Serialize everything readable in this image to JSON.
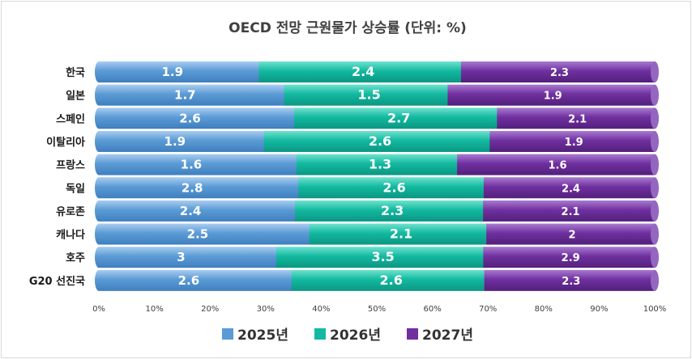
{
  "chart_data": {
    "type": "bar",
    "orientation": "horizontal",
    "stacked": "percent",
    "title": "OECD 전망 근원물가 상승률 (단위: %)",
    "categories": [
      "한국",
      "일본",
      "스페인",
      "이탈리아",
      "프랑스",
      "독일",
      "유로존",
      "캐나다",
      "호주",
      "G20 선진국"
    ],
    "series": [
      {
        "name": "2025년",
        "color": "#5B9BD5",
        "values": [
          1.9,
          1.7,
          2.6,
          1.9,
          1.6,
          2.8,
          2.4,
          2.5,
          3,
          2.6
        ]
      },
      {
        "name": "2026년",
        "color": "#13B9A0",
        "values": [
          2.4,
          1.5,
          2.7,
          2.6,
          1.3,
          2.6,
          2.3,
          2.1,
          3.5,
          2.6
        ]
      },
      {
        "name": "2027년",
        "color": "#7030A0",
        "values": [
          2.3,
          1.9,
          2.1,
          1.9,
          1.6,
          2.4,
          2.1,
          2,
          2.9,
          2.3
        ]
      }
    ],
    "value_labels": [
      [
        "1.9",
        "1.7",
        "2.6",
        "1.9",
        "1.6",
        "2.8",
        "2.4",
        "2.5",
        "3",
        "2.6"
      ],
      [
        "2.4",
        "1.5",
        "2.7",
        "2.6",
        "1.3",
        "2.6",
        "2.3",
        "2.1",
        "3.5",
        "2.6"
      ],
      [
        "2.3",
        "1.9",
        "2.1",
        "1.9",
        "1.6",
        "2.4",
        "2.1",
        "2",
        "2.9",
        "2.3"
      ]
    ],
    "x_ticks": [
      "0%",
      "10%",
      "20%",
      "30%",
      "40%",
      "50%",
      "60%",
      "70%",
      "80%",
      "90%",
      "100%"
    ],
    "xlim": [
      0,
      100
    ],
    "legend_position": "bottom",
    "grid": false
  }
}
